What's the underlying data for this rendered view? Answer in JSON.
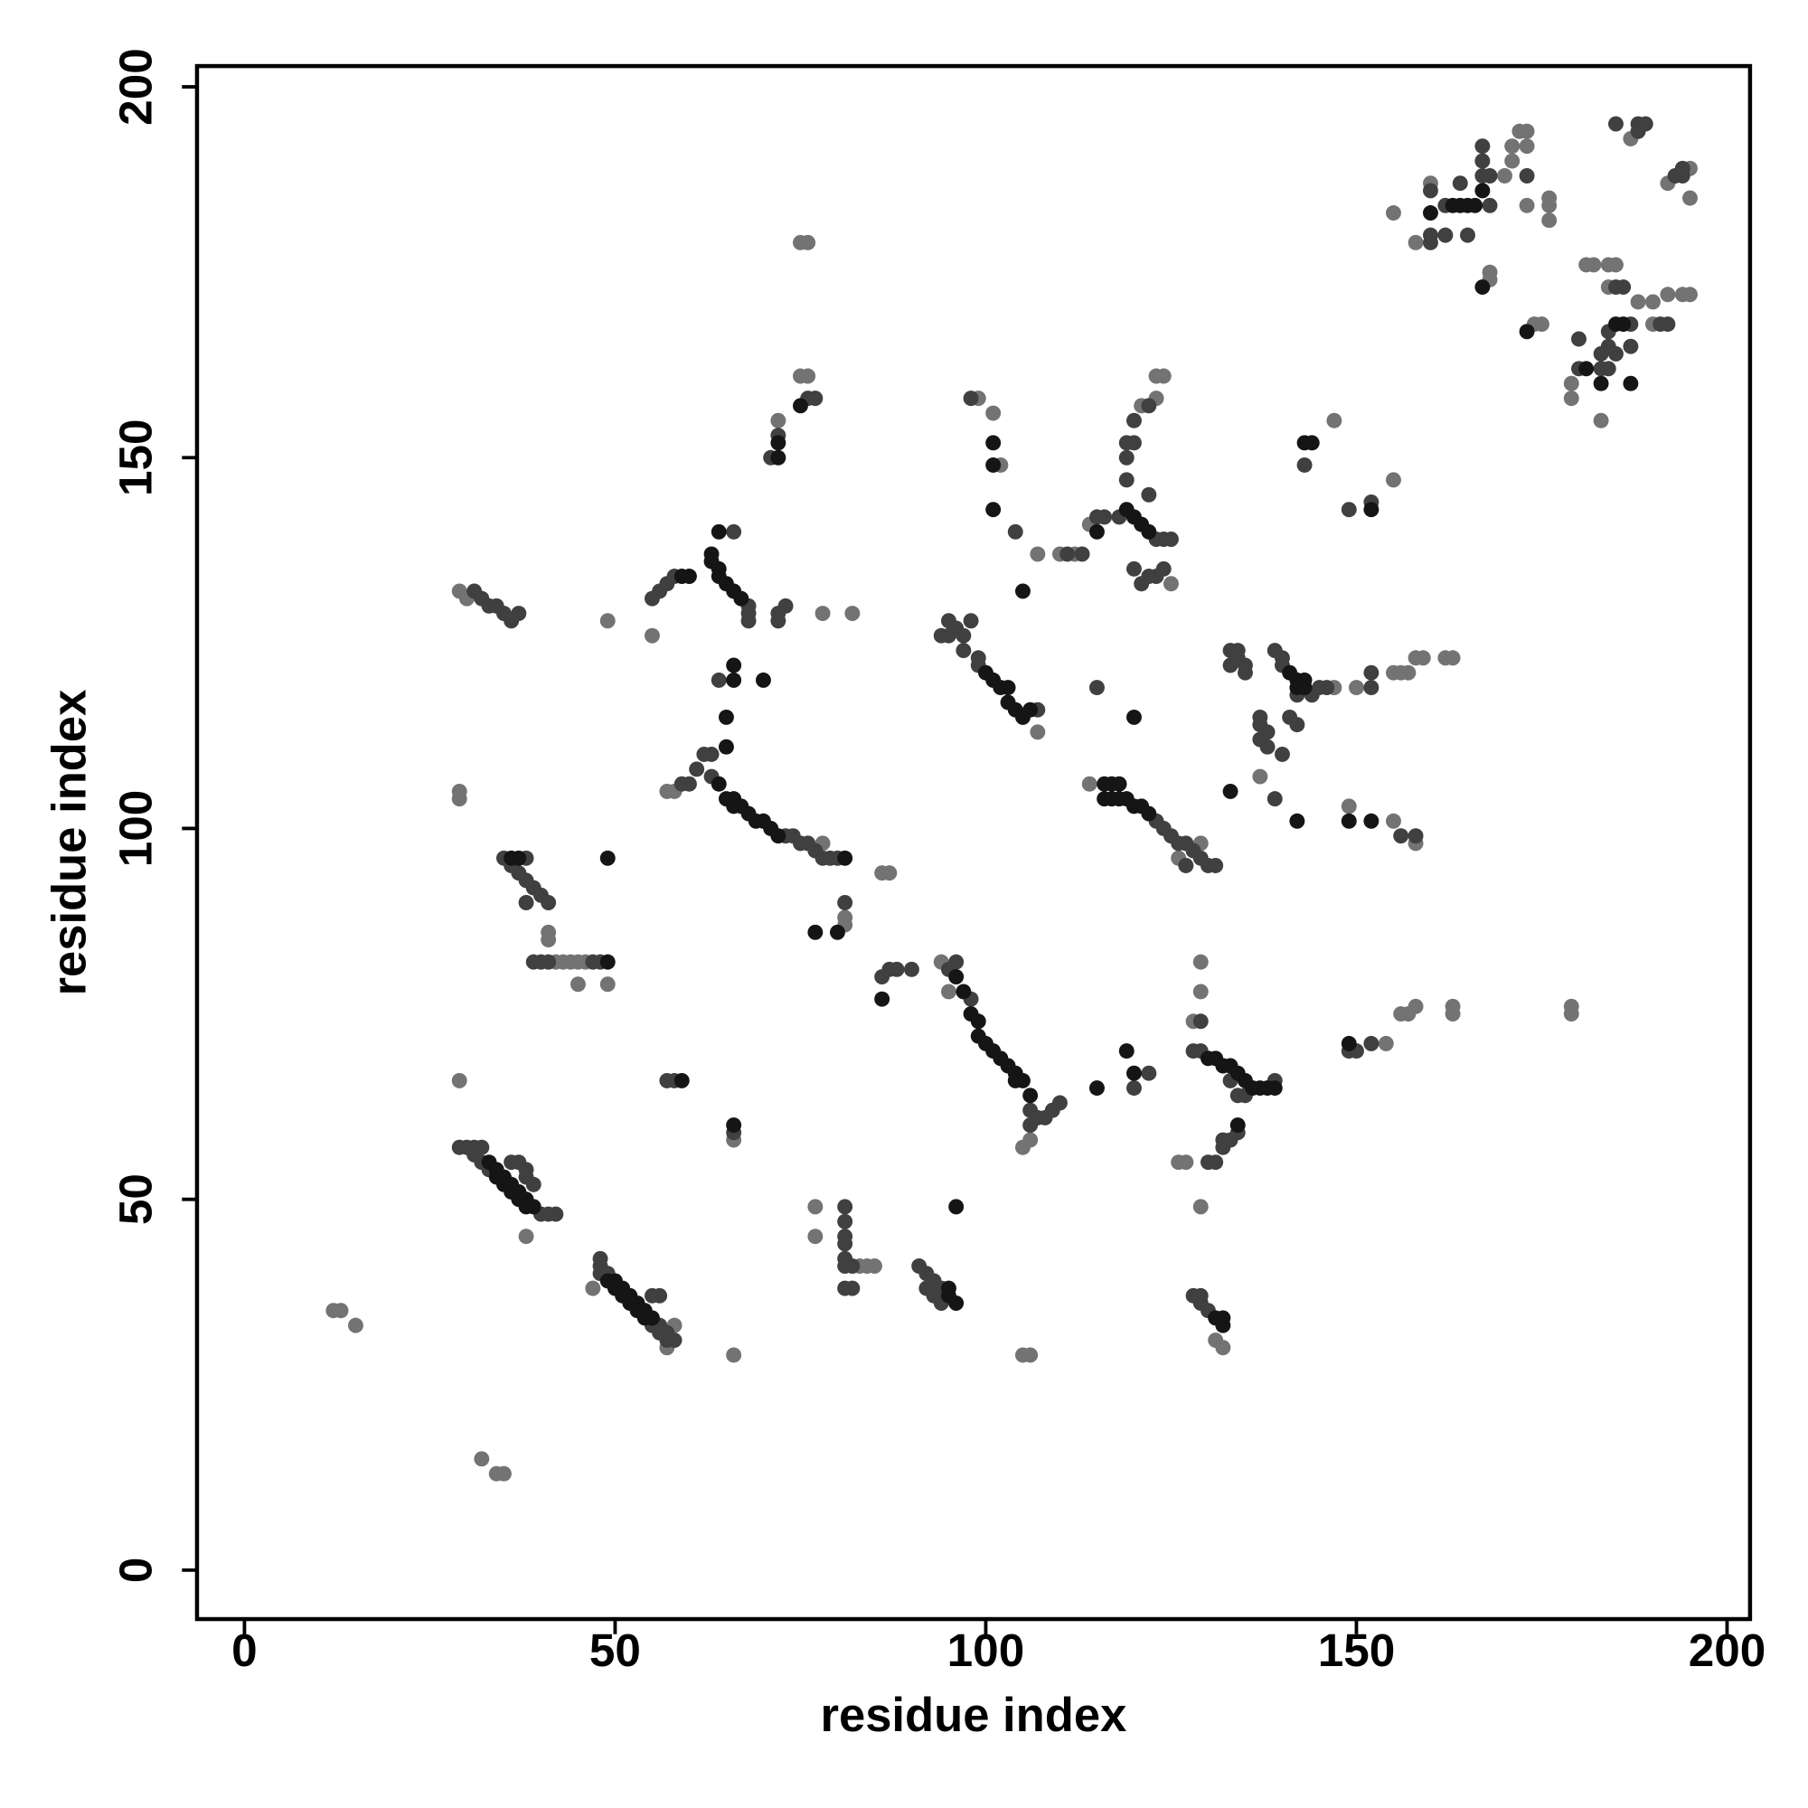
{
  "chart_data": {
    "type": "scatter",
    "xlabel": "residue index",
    "ylabel": "residue index",
    "xlim": [
      -6.4,
      203.1
    ],
    "ylim": [
      -6.6,
      202.8
    ],
    "xticks": [
      0,
      50,
      100,
      150,
      200
    ],
    "yticks": [
      0,
      50,
      100,
      150,
      200
    ],
    "series": [
      {
        "color": "#737373",
        "x": [
          12,
          13,
          15,
          32,
          34,
          35,
          29,
          30,
          29,
          29,
          29,
          38,
          47,
          57,
          58,
          41,
          41,
          45,
          49,
          42,
          43,
          44,
          45,
          46,
          49,
          55,
          57,
          58,
          66,
          66,
          72,
          75,
          76,
          75,
          76,
          78,
          82,
          78,
          86,
          87,
          81,
          81,
          77,
          77,
          83,
          84,
          85,
          105,
          106,
          94,
          95,
          105,
          106,
          127,
          107,
          99,
          101,
          102,
          107,
          110,
          112,
          114,
          123,
          124,
          123,
          121,
          125,
          114,
          126,
          129,
          129,
          129,
          128,
          129,
          126,
          131,
          132,
          137,
          147,
          155,
          149,
          155,
          158,
          154,
          156,
          157,
          158,
          163,
          163,
          179,
          179,
          155,
          156,
          157,
          158,
          159,
          162,
          163,
          150,
          147,
          155,
          158,
          160,
          168,
          168,
          170,
          171,
          171,
          172,
          173,
          173,
          173,
          174,
          175,
          176,
          176,
          176,
          179,
          179,
          181,
          182,
          183,
          184,
          184,
          185,
          187,
          188,
          190,
          190,
          192,
          192,
          194,
          195,
          195,
          195
        ],
        "values": [
          35,
          35,
          33,
          15,
          13,
          13,
          132,
          131,
          105,
          104,
          66,
          45,
          38,
          30,
          33,
          86,
          85,
          79,
          79,
          82,
          82,
          82,
          82,
          82,
          128,
          126,
          105,
          105,
          29,
          58,
          155,
          161,
          161,
          179,
          179,
          129,
          129,
          98,
          94,
          94,
          88,
          87,
          49,
          45,
          41,
          41,
          41,
          29,
          29,
          82,
          78,
          57,
          58,
          55,
          113,
          158,
          156,
          149,
          137,
          137,
          137,
          141,
          161,
          161,
          158,
          157,
          133,
          106,
          96,
          98,
          82,
          78,
          74,
          49,
          55,
          31,
          30,
          107,
          155,
          147,
          103,
          101,
          98,
          71,
          75,
          75,
          76,
          76,
          75,
          76,
          75,
          121,
          121,
          121,
          123,
          123,
          123,
          123,
          119,
          119,
          183,
          179,
          187,
          175,
          174,
          188,
          192,
          190,
          194,
          194,
          192,
          184,
          168,
          168,
          184,
          182,
          185,
          158,
          160,
          176,
          176,
          155,
          173,
          176,
          176,
          193,
          171,
          168,
          171,
          172,
          187,
          172,
          172,
          189,
          185
        ]
      },
      {
        "color": "#404040",
        "x": [
          29,
          30,
          31,
          32,
          31,
          32,
          33,
          36,
          37,
          38,
          38,
          39,
          40,
          41,
          42,
          48,
          48,
          48,
          49,
          55,
          56,
          56,
          57,
          57,
          58,
          56,
          55,
          31,
          32,
          33,
          34,
          35,
          36,
          37,
          35,
          38,
          36,
          37,
          38,
          39,
          40,
          41,
          38,
          39,
          40,
          41,
          47,
          48,
          55,
          59,
          60,
          61,
          62,
          63,
          63,
          73,
          74,
          75,
          76,
          77,
          78,
          79,
          80,
          56,
          57,
          58,
          68,
          68,
          68,
          66,
          72,
          72,
          73,
          64,
          57,
          58,
          66,
          71,
          72,
          76,
          77,
          81,
          86,
          87,
          88,
          90,
          81,
          81,
          81,
          81,
          81,
          81,
          82,
          81,
          82,
          91,
          92,
          92,
          93,
          93,
          94,
          94,
          95,
          96,
          98,
          106,
          106,
          107,
          108,
          109,
          110,
          120,
          122,
          94,
          95,
          95,
          96,
          97,
          97,
          98,
          99,
          99,
          107,
          98,
          104,
          111,
          113,
          115,
          116,
          118,
          123,
          124,
          125,
          122,
          123,
          120,
          121,
          124,
          119,
          119,
          119,
          120,
          122,
          120,
          122,
          115,
          123,
          124,
          125,
          126,
          127,
          128,
          129,
          130,
          127,
          131,
          128,
          129,
          129,
          133,
          134,
          135,
          139,
          130,
          131,
          132,
          132,
          133,
          134,
          128,
          129,
          130,
          129,
          133,
          133,
          134,
          134,
          135,
          135,
          137,
          137,
          137,
          138,
          138,
          139,
          140,
          140,
          142,
          144,
          145,
          146,
          152,
          152,
          139,
          140,
          141,
          142,
          143,
          149,
          152,
          156,
          158,
          149,
          150,
          152,
          160,
          160,
          160,
          162,
          162,
          164,
          165,
          167,
          167,
          167,
          168,
          168,
          173,
          180,
          180,
          183,
          183,
          184,
          184,
          184,
          185,
          185,
          185,
          187,
          187,
          188,
          188,
          189,
          186,
          191,
          192,
          193,
          194,
          194
        ],
        "values": [
          57,
          57,
          57,
          57,
          56,
          55,
          54,
          55,
          55,
          54,
          53,
          52,
          48,
          48,
          48,
          42,
          41,
          40,
          40,
          33,
          33,
          32,
          32,
          31,
          31,
          37,
          37,
          132,
          131,
          130,
          130,
          129,
          128,
          129,
          96,
          96,
          95,
          94,
          93,
          92,
          91,
          90,
          90,
          82,
          82,
          82,
          82,
          82,
          131,
          106,
          106,
          108,
          110,
          110,
          107,
          99,
          99,
          98,
          98,
          97,
          96,
          96,
          96,
          132,
          133,
          134,
          130,
          129,
          128,
          140,
          128,
          129,
          130,
          120,
          66,
          66,
          59,
          150,
          153,
          158,
          158,
          90,
          80,
          81,
          81,
          81,
          49,
          47,
          45,
          44,
          42,
          41,
          41,
          38,
          38,
          41,
          40,
          38,
          39,
          37,
          38,
          36,
          81,
          82,
          77,
          62,
          60,
          61,
          61,
          62,
          63,
          65,
          67,
          126,
          126,
          128,
          127,
          126,
          124,
          128,
          123,
          122,
          116,
          158,
          140,
          137,
          137,
          142,
          142,
          142,
          139,
          139,
          139,
          134,
          134,
          135,
          133,
          135,
          147,
          150,
          152,
          155,
          157,
          152,
          145,
          119,
          101,
          100,
          99,
          98,
          98,
          97,
          96,
          95,
          95,
          95,
          70,
          74,
          70,
          66,
          64,
          64,
          66,
          55,
          55,
          57,
          58,
          58,
          59,
          37,
          36,
          35,
          37,
          124,
          122,
          124,
          123,
          122,
          121,
          115,
          114,
          112,
          113,
          111,
          124,
          123,
          122,
          118,
          118,
          119,
          119,
          119,
          121,
          104,
          110,
          115,
          114,
          149,
          143,
          144,
          99,
          99,
          70,
          70,
          71,
          179,
          180,
          186,
          184,
          180,
          187,
          180,
          188,
          190,
          192,
          184,
          188,
          188,
          162,
          166,
          162,
          164,
          162,
          165,
          167,
          173,
          164,
          195,
          168,
          165,
          194,
          195,
          195,
          173,
          168,
          168,
          188,
          189,
          188
        ]
      },
      {
        "color": "#151515",
        "x": [
          33,
          34,
          34,
          35,
          35,
          36,
          36,
          37,
          37,
          38,
          38,
          39,
          49,
          50,
          50,
          51,
          51,
          52,
          52,
          53,
          53,
          54,
          54,
          55,
          36,
          37,
          49,
          49,
          59,
          60,
          63,
          63,
          64,
          64,
          65,
          66,
          67,
          64,
          66,
          66,
          65,
          65,
          70,
          59,
          66,
          72,
          72,
          75,
          64,
          65,
          66,
          66,
          67,
          68,
          69,
          70,
          71,
          72,
          77,
          80,
          81,
          86,
          96,
          95,
          95,
          96,
          96,
          97,
          98,
          99,
          99,
          100,
          101,
          102,
          103,
          104,
          104,
          105,
          106,
          115,
          119,
          120,
          100,
          101,
          102,
          103,
          103,
          104,
          105,
          106,
          101,
          101,
          101,
          105,
          115,
          119,
          120,
          121,
          122,
          116,
          117,
          118,
          116,
          117,
          118,
          119,
          120,
          121,
          122,
          120,
          130,
          131,
          132,
          133,
          134,
          135,
          136,
          137,
          138,
          139,
          134,
          131,
          132,
          132,
          141,
          142,
          142,
          143,
          143,
          142,
          143,
          144,
          152,
          149,
          152,
          149,
          160,
          163,
          164,
          165,
          166,
          167,
          167,
          173,
          181,
          183,
          185,
          187,
          186,
          133
        ],
        "values": [
          55,
          54,
          53,
          53,
          52,
          52,
          51,
          51,
          50,
          50,
          49,
          49,
          39,
          39,
          38,
          38,
          37,
          37,
          36,
          36,
          35,
          35,
          34,
          34,
          96,
          96,
          82,
          96,
          134,
          134,
          137,
          136,
          135,
          134,
          133,
          132,
          131,
          140,
          122,
          120,
          115,
          111,
          120,
          66,
          60,
          150,
          152,
          157,
          106,
          104,
          104,
          103,
          103,
          102,
          101,
          101,
          100,
          99,
          86,
          86,
          96,
          77,
          49,
          38,
          37,
          36,
          80,
          78,
          75,
          74,
          72,
          71,
          70,
          69,
          68,
          67,
          66,
          66,
          64,
          65,
          70,
          67,
          121,
          120,
          119,
          119,
          117,
          116,
          115,
          116,
          152,
          149,
          143,
          132,
          140,
          143,
          142,
          141,
          140,
          106,
          106,
          106,
          104,
          104,
          104,
          104,
          103,
          103,
          102,
          115,
          69,
          69,
          68,
          68,
          67,
          66,
          65,
          65,
          65,
          65,
          60,
          34,
          34,
          33,
          121,
          120,
          119,
          120,
          119,
          101,
          152,
          152,
          143,
          101,
          101,
          71,
          183,
          184,
          184,
          184,
          184,
          186,
          173,
          167,
          162,
          160,
          168,
          160,
          168,
          105
        ]
      }
    ]
  }
}
